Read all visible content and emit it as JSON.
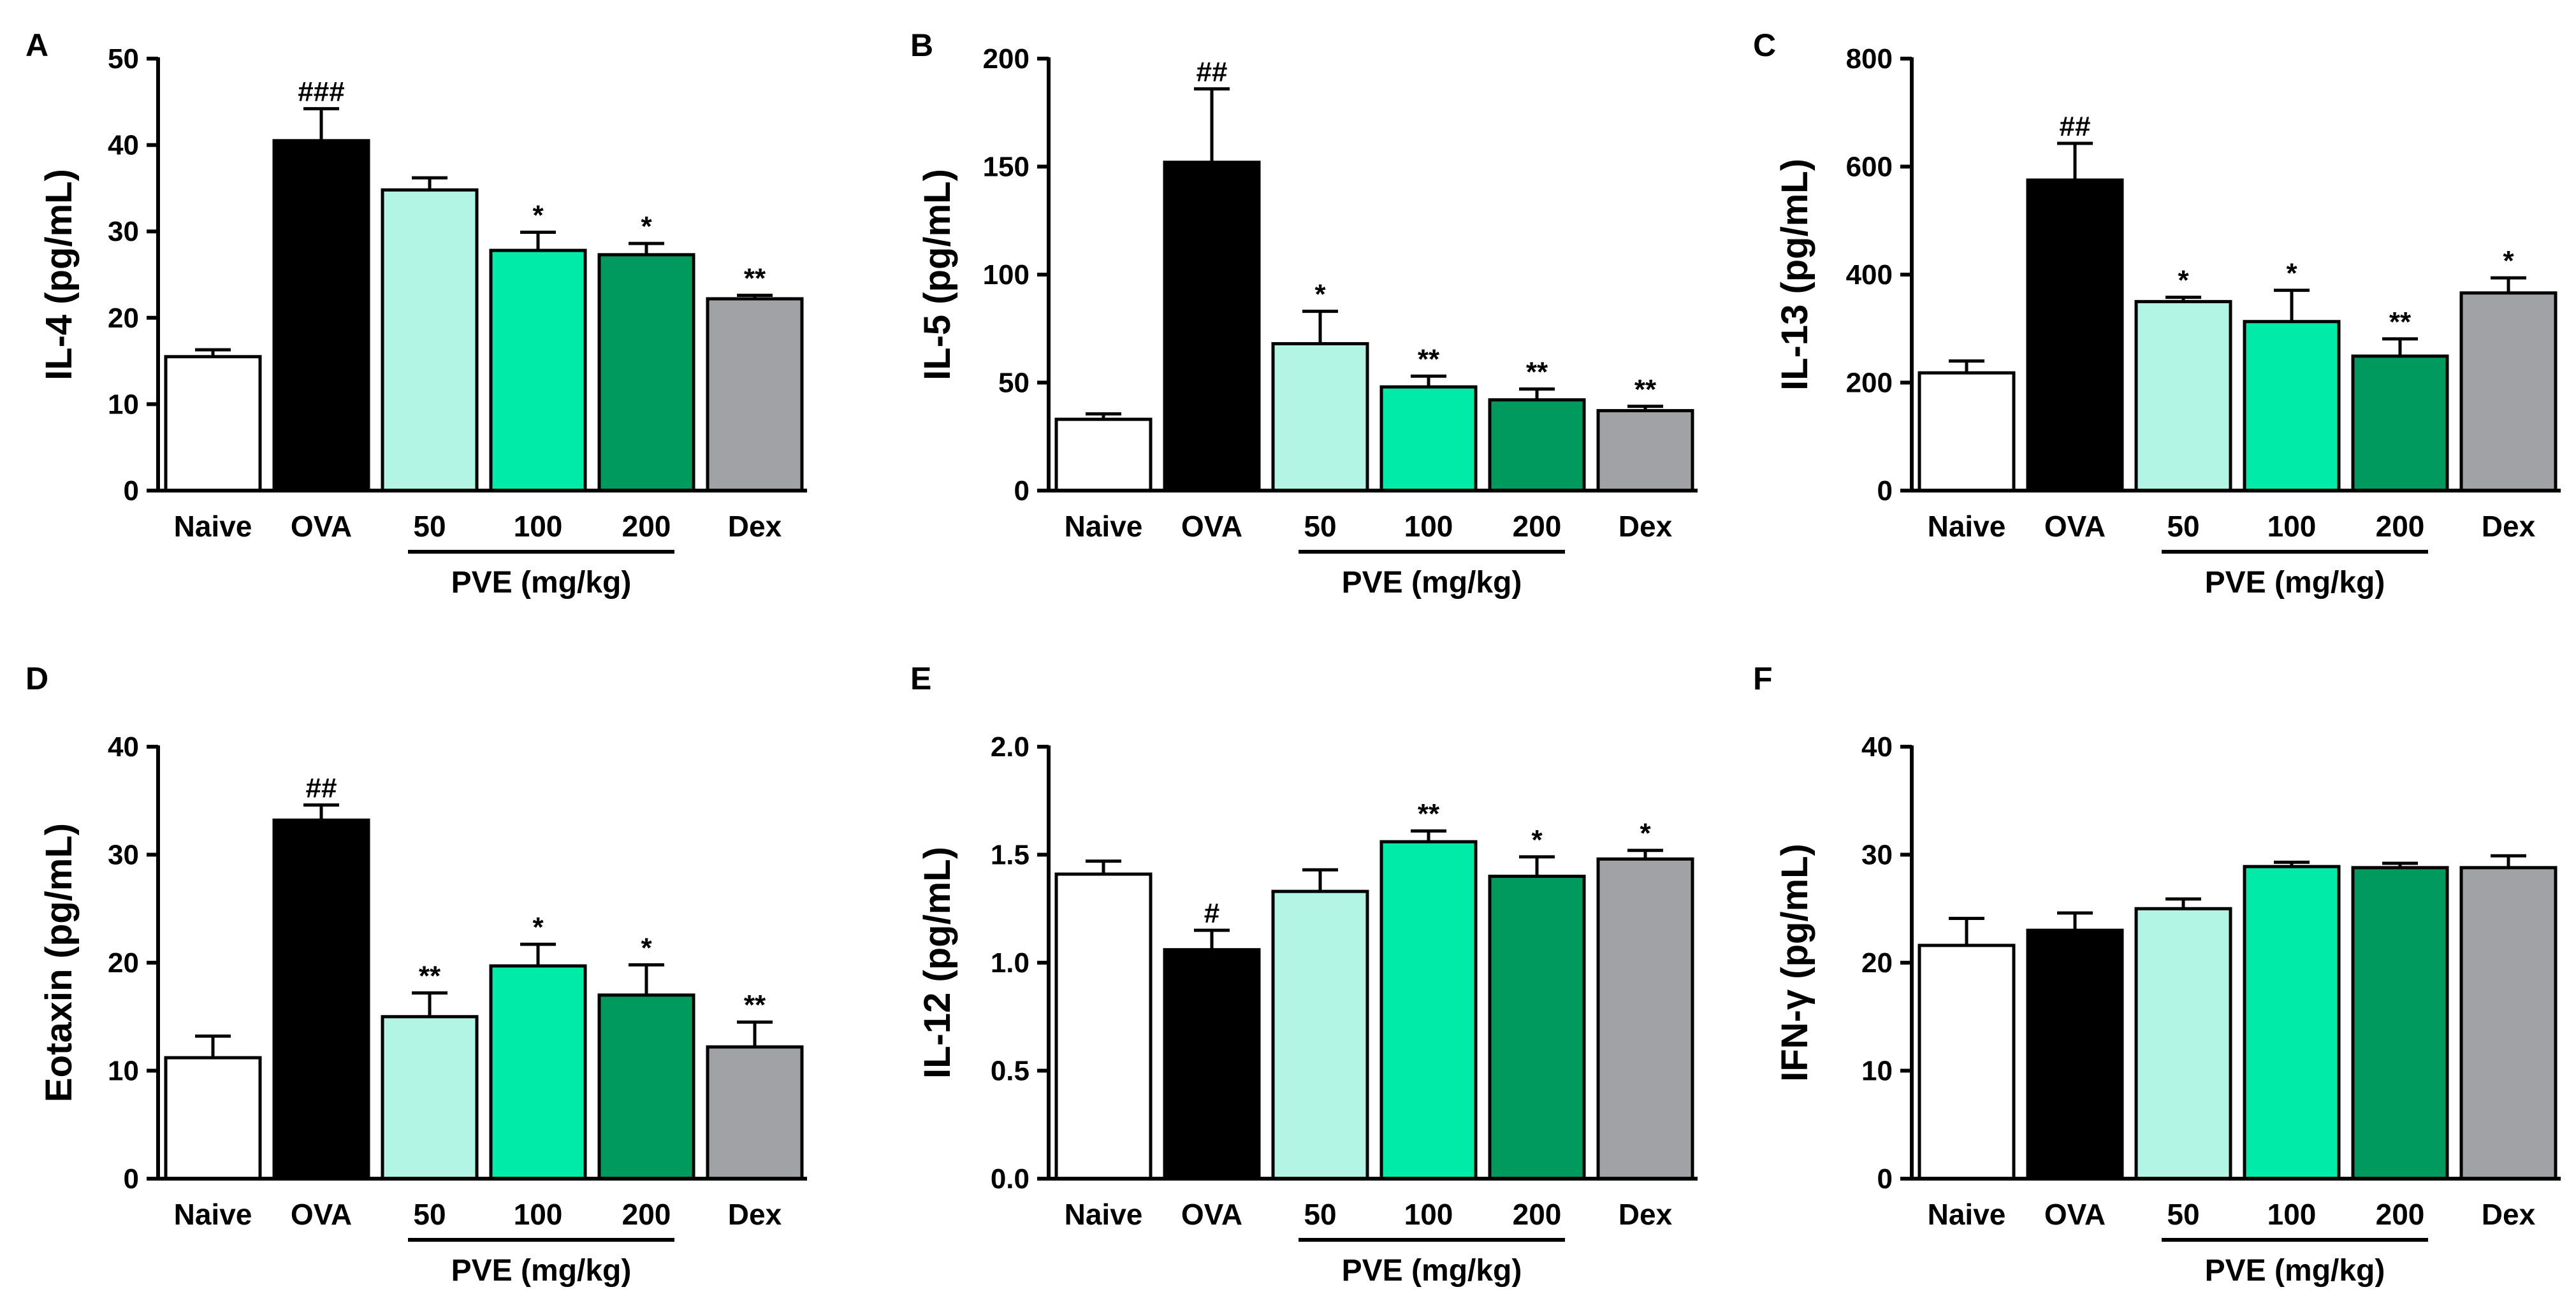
{
  "figure": {
    "colors": {
      "Naive": "#ffffff",
      "OVA": "#000000",
      "50": "#b3f5e4",
      "100": "#00eba7",
      "200": "#009a5f",
      "Dex": "#a1a2a6"
    },
    "group_label": "PVE (mg/kg)",
    "group_members": [
      "50",
      "100",
      "200"
    ]
  },
  "chart_data": [
    {
      "type": "bar",
      "panel": "A",
      "ylabel": "IL-4 (pg/mL)",
      "categories": [
        "Naive",
        "OVA",
        "50",
        "100",
        "200",
        "Dex"
      ],
      "values": [
        15.5,
        40.5,
        34.8,
        27.8,
        27.3,
        22.2
      ],
      "errors": [
        0.8,
        3.7,
        1.4,
        2.1,
        1.3,
        0.4
      ],
      "significance": [
        "",
        "###",
        "",
        "*",
        "*",
        "**"
      ],
      "ylim": [
        0,
        50
      ],
      "yticks": [
        0,
        10,
        20,
        30,
        40,
        50
      ],
      "tick_labels": [
        "0",
        "10",
        "20",
        "30",
        "40",
        "50"
      ]
    },
    {
      "type": "bar",
      "panel": "B",
      "ylabel": "IL-5 (pg/mL)",
      "categories": [
        "Naive",
        "OVA",
        "50",
        "100",
        "200",
        "Dex"
      ],
      "values": [
        33,
        152,
        68,
        48,
        42,
        37
      ],
      "errors": [
        2.5,
        34,
        15,
        5,
        5,
        2
      ],
      "significance": [
        "",
        "##",
        "*",
        "**",
        "**",
        "**"
      ],
      "ylim": [
        0,
        200
      ],
      "yticks": [
        0,
        50,
        100,
        150,
        200
      ],
      "tick_labels": [
        "0",
        "50",
        "100",
        "150",
        "200"
      ]
    },
    {
      "type": "bar",
      "panel": "C",
      "ylabel": "IL-13 (pg/mL)",
      "categories": [
        "Naive",
        "OVA",
        "50",
        "100",
        "200",
        "Dex"
      ],
      "values": [
        218,
        575,
        350,
        313,
        249,
        366
      ],
      "errors": [
        22,
        68,
        8,
        58,
        32,
        28
      ],
      "significance": [
        "",
        "##",
        "*",
        "*",
        "**",
        "*"
      ],
      "ylim": [
        0,
        800
      ],
      "yticks": [
        0,
        200,
        400,
        600,
        800
      ],
      "tick_labels": [
        "0",
        "200",
        "400",
        "600",
        "800"
      ]
    },
    {
      "type": "bar",
      "panel": "D",
      "ylabel": "Eotaxin (pg/mL)",
      "categories": [
        "Naive",
        "OVA",
        "50",
        "100",
        "200",
        "Dex"
      ],
      "values": [
        11.2,
        33.2,
        15.0,
        19.7,
        17.0,
        12.2
      ],
      "errors": [
        2.0,
        1.4,
        2.2,
        2.0,
        2.8,
        2.3
      ],
      "significance": [
        "",
        "##",
        "**",
        "*",
        "*",
        "**"
      ],
      "ylim": [
        0,
        40
      ],
      "yticks": [
        0,
        10,
        20,
        30,
        40
      ],
      "tick_labels": [
        "0",
        "10",
        "20",
        "30",
        "40"
      ]
    },
    {
      "type": "bar",
      "panel": "E",
      "ylabel": "IL-12 (pg/mL)",
      "categories": [
        "Naive",
        "OVA",
        "50",
        "100",
        "200",
        "Dex"
      ],
      "values": [
        1.41,
        1.06,
        1.33,
        1.56,
        1.4,
        1.48
      ],
      "errors": [
        0.06,
        0.09,
        0.1,
        0.05,
        0.09,
        0.04
      ],
      "significance": [
        "",
        "#",
        "",
        "**",
        "*",
        "*"
      ],
      "ylim": [
        0,
        2.0
      ],
      "yticks": [
        0,
        0.5,
        1.0,
        1.5,
        2.0
      ],
      "tick_labels": [
        "0.0",
        "0.5",
        "1.0",
        "1.5",
        "2.0"
      ]
    },
    {
      "type": "bar",
      "panel": "F",
      "ylabel": "IFN-γ (pg/mL)",
      "categories": [
        "Naive",
        "OVA",
        "50",
        "100",
        "200",
        "Dex"
      ],
      "values": [
        21.6,
        23.0,
        25.0,
        28.9,
        28.8,
        28.8
      ],
      "errors": [
        2.5,
        1.6,
        0.9,
        0.4,
        0.4,
        1.1
      ],
      "significance": [
        "",
        "",
        "",
        "",
        "",
        ""
      ],
      "ylim": [
        0,
        40
      ],
      "yticks": [
        0,
        10,
        20,
        30,
        40
      ],
      "tick_labels": [
        "0",
        "10",
        "20",
        "30",
        "40"
      ]
    }
  ]
}
